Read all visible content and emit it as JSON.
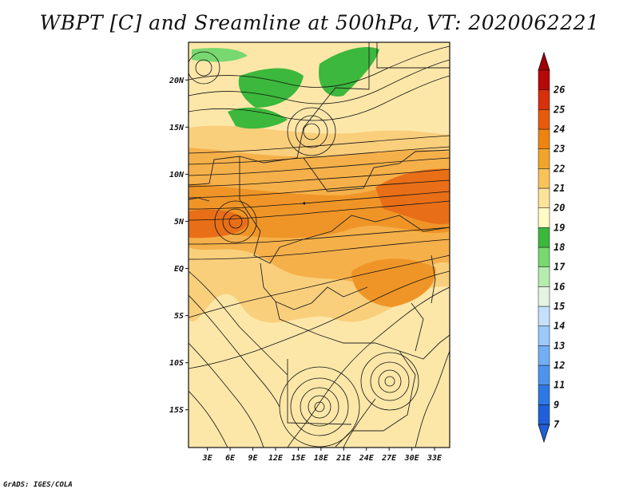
{
  "title": "WBPT [C] and Sreamline at 500hPa, VT: 2020062221",
  "footer": "GrADS: IGES/COLA",
  "map": {
    "lat_labels": [
      "20N",
      "15N",
      "10N",
      "5N",
      "EQ",
      "5S",
      "10S",
      "15S"
    ],
    "lat_values": [
      20,
      15,
      10,
      5,
      0,
      -5,
      -10,
      -15
    ],
    "lon_labels": [
      "3E",
      "6E",
      "9E",
      "12E",
      "15E",
      "18E",
      "21E",
      "24E",
      "27E",
      "30E",
      "33E"
    ],
    "lon_values": [
      3,
      6,
      9,
      12,
      15,
      18,
      21,
      24,
      27,
      30,
      33
    ],
    "lon_range": [
      0.5,
      35
    ],
    "lat_range": [
      -19,
      24
    ]
  },
  "colorbar": {
    "labels": [
      "7",
      "9",
      "11",
      "12",
      "13",
      "14",
      "15",
      "16",
      "17",
      "18",
      "19",
      "20",
      "21",
      "22",
      "23",
      "24",
      "25",
      "26"
    ],
    "colors": [
      "#1f5fd9",
      "#2e78e6",
      "#4d94ee",
      "#73aef5",
      "#9cc8fa",
      "#c4e0fc",
      "#e4f5e4",
      "#b6ecb0",
      "#78d870",
      "#3cb83c",
      "#fffbc4",
      "#fbe39a",
      "#f7c35a",
      "#f2a42a",
      "#ee8410",
      "#e85a0a",
      "#d8300a",
      "#b80808"
    ],
    "low_end_color": "#1f5fd9",
    "high_end_color": "#a00000"
  }
}
